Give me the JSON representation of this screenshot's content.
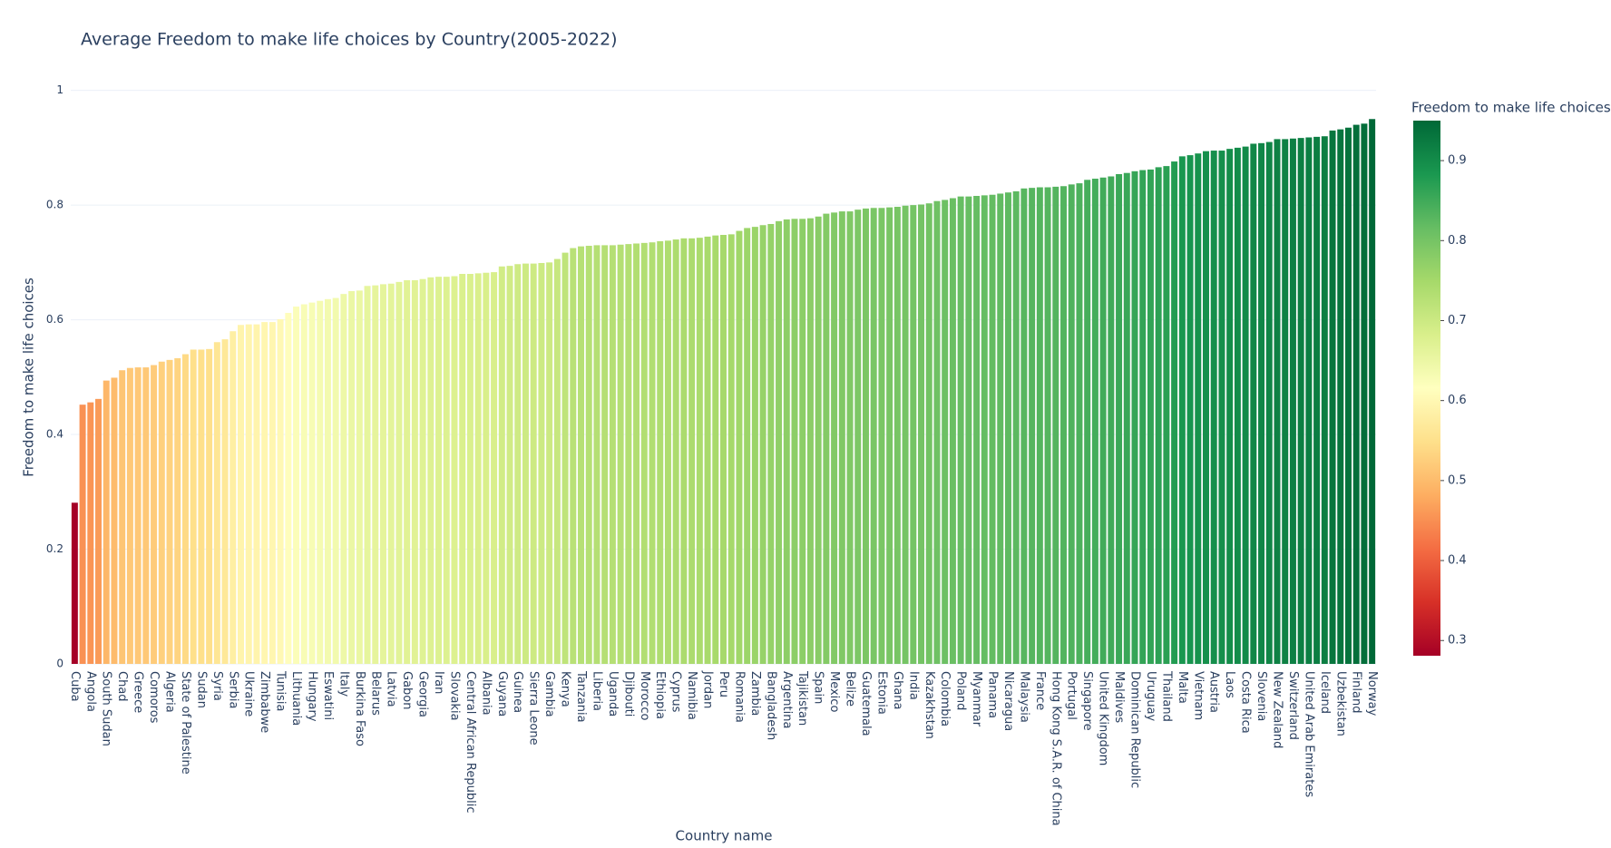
{
  "chart_data": {
    "type": "bar",
    "title": "Average Freedom to make life choices by Country(2005-2022)",
    "x_label": "Country name",
    "y_label": "Freedom to make life choices",
    "colorbar_title": "Freedom to make life choices",
    "categories": [
      "Cuba",
      null,
      "Angola",
      null,
      "South Sudan",
      null,
      "Chad",
      null,
      "Greece",
      null,
      "Comoros",
      null,
      "Algeria",
      null,
      "State of Palestine",
      null,
      "Sudan",
      null,
      "Syria",
      null,
      "Serbia",
      null,
      "Ukraine",
      null,
      "Zimbabwe",
      null,
      "Tunisia",
      null,
      "Lithuania",
      null,
      "Hungary",
      null,
      "Eswatini",
      null,
      "Italy",
      null,
      "Burkina Faso",
      null,
      "Belarus",
      null,
      "Latvia",
      null,
      "Gabon",
      null,
      "Georgia",
      null,
      "Iran",
      null,
      "Slovakia",
      null,
      "Central African Republic",
      null,
      "Albania",
      null,
      "Guyana",
      null,
      "Guinea",
      null,
      "Sierra Leone",
      null,
      "Gambia",
      null,
      "Kenya",
      null,
      "Tanzania",
      null,
      "Liberia",
      null,
      "Uganda",
      null,
      "Djibouti",
      null,
      "Morocco",
      null,
      "Ethiopia",
      null,
      "Cyprus",
      null,
      "Namibia",
      null,
      "Jordan",
      null,
      "Peru",
      null,
      "Romania",
      null,
      "Zambia",
      null,
      "Bangladesh",
      null,
      "Argentina",
      null,
      "Tajikistan",
      null,
      "Spain",
      null,
      "Mexico",
      null,
      "Belize",
      null,
      "Guatemala",
      null,
      "Estonia",
      null,
      "Ghana",
      null,
      "India",
      null,
      "Kazakhstan",
      null,
      "Colombia",
      null,
      "Poland",
      null,
      "Myanmar",
      null,
      "Panama",
      null,
      "Nicaragua",
      null,
      "Malaysia",
      null,
      "France",
      null,
      "Hong Kong S.A.R. of China",
      null,
      "Portugal",
      null,
      "Singapore",
      null,
      "United Kingdom",
      null,
      "Maldives",
      null,
      "Dominican Republic",
      null,
      "Uruguay",
      null,
      "Thailand",
      null,
      "Malta",
      null,
      "Vietnam",
      null,
      "Austria",
      null,
      "Laos",
      null,
      "Costa Rica",
      null,
      "Slovenia",
      null,
      "New Zealand",
      null,
      "Switzerland",
      null,
      "United Arab Emirates",
      null,
      "Iceland",
      null,
      "Uzbekistan",
      null,
      "Finland",
      null,
      "Norway"
    ],
    "values": [
      0.281,
      0.452,
      0.456,
      0.462,
      0.494,
      0.499,
      0.512,
      0.516,
      0.517,
      0.517,
      0.521,
      0.527,
      0.53,
      0.533,
      0.54,
      0.548,
      0.548,
      0.549,
      0.561,
      0.566,
      0.58,
      0.591,
      0.592,
      0.592,
      0.596,
      0.596,
      0.601,
      0.612,
      0.623,
      0.627,
      0.63,
      0.633,
      0.636,
      0.638,
      0.645,
      0.65,
      0.651,
      0.659,
      0.66,
      0.662,
      0.663,
      0.666,
      0.669,
      0.669,
      0.671,
      0.674,
      0.675,
      0.675,
      0.676,
      0.68,
      0.68,
      0.681,
      0.682,
      0.683,
      0.693,
      0.694,
      0.697,
      0.698,
      0.698,
      0.699,
      0.7,
      0.706,
      0.717,
      0.725,
      0.728,
      0.729,
      0.73,
      0.73,
      0.73,
      0.731,
      0.732,
      0.733,
      0.734,
      0.735,
      0.737,
      0.738,
      0.74,
      0.742,
      0.742,
      0.743,
      0.745,
      0.747,
      0.748,
      0.749,
      0.755,
      0.76,
      0.762,
      0.765,
      0.767,
      0.772,
      0.775,
      0.776,
      0.776,
      0.777,
      0.78,
      0.785,
      0.787,
      0.789,
      0.789,
      0.792,
      0.794,
      0.795,
      0.795,
      0.796,
      0.797,
      0.799,
      0.8,
      0.801,
      0.803,
      0.807,
      0.809,
      0.812,
      0.815,
      0.815,
      0.816,
      0.817,
      0.818,
      0.82,
      0.822,
      0.824,
      0.829,
      0.83,
      0.831,
      0.831,
      0.832,
      0.833,
      0.836,
      0.838,
      0.844,
      0.846,
      0.848,
      0.85,
      0.854,
      0.856,
      0.859,
      0.861,
      0.862,
      0.866,
      0.868,
      0.876,
      0.885,
      0.887,
      0.89,
      0.894,
      0.895,
      0.895,
      0.898,
      0.9,
      0.902,
      0.907,
      0.908,
      0.91,
      0.915,
      0.915,
      0.916,
      0.917,
      0.918,
      0.919,
      0.92,
      0.93,
      0.932,
      0.935,
      0.94,
      0.942,
      0.95
    ],
    "ylim": [
      0,
      1.02
    ],
    "yticks": [
      0,
      0.2,
      0.4,
      0.6,
      0.8,
      1
    ],
    "grid": true,
    "colorscale": [
      [
        0,
        "rgb(165,0,38)"
      ],
      [
        0.1,
        "rgb(215,48,39)"
      ],
      [
        0.2,
        "rgb(244,109,67)"
      ],
      [
        0.3,
        "rgb(253,174,97)"
      ],
      [
        0.4,
        "rgb(254,224,139)"
      ],
      [
        0.5,
        "rgb(255,255,191)"
      ],
      [
        0.6,
        "rgb(217,239,139)"
      ],
      [
        0.7,
        "rgb(166,217,106)"
      ],
      [
        0.8,
        "rgb(102,189,99)"
      ],
      [
        0.9,
        "rgb(26,152,80)"
      ],
      [
        1,
        "rgb(0,104,55)"
      ]
    ],
    "colorbar_ticks": [
      0.3,
      0.4,
      0.5,
      0.6,
      0.7,
      0.8,
      0.9
    ]
  }
}
